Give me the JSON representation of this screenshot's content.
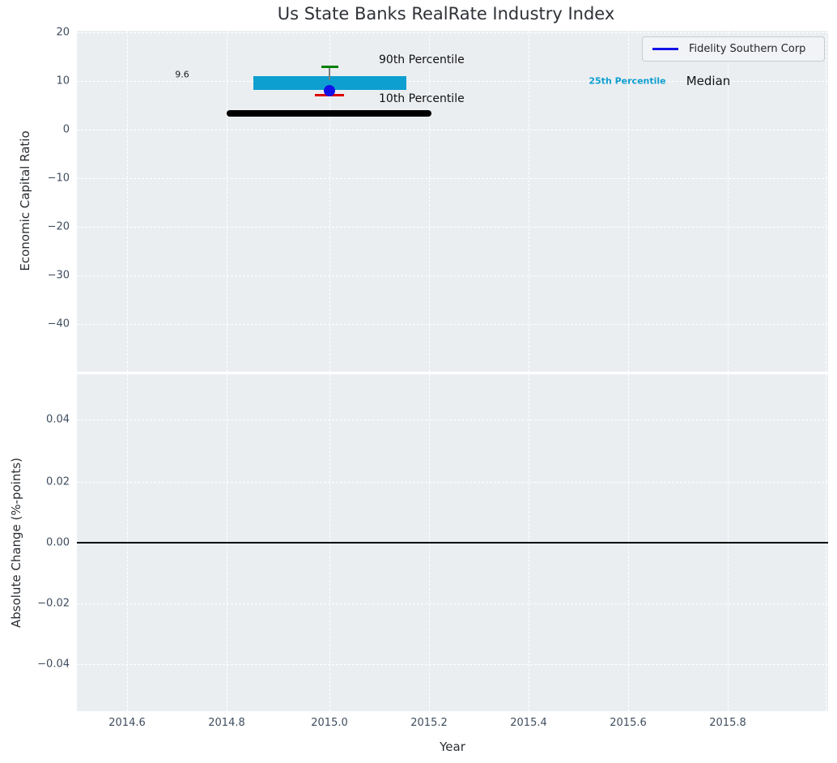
{
  "figure": {
    "title": "Us State Banks RealRate Industry Index"
  },
  "top_plot": {
    "ylabel": "Economic Capital Ratio",
    "yticks": [
      "20",
      "10",
      "0",
      "−10",
      "−20",
      "−30",
      "−40"
    ],
    "legend_label": "Fidelity Southern Corp",
    "annotations": {
      "median_value": "9.6",
      "p90_label": "90th Percentile",
      "p10_label": "10th Percentile",
      "p25_label": "25th Percentile",
      "median_label": "Median"
    }
  },
  "bottom_plot": {
    "ylabel": "Absolute Change (%-points)",
    "yticks": [
      "0.04",
      "0.02",
      "0.00",
      "−0.02",
      "−0.04"
    ]
  },
  "x_axis": {
    "label": "Year",
    "ticks": [
      "2014.6",
      "2014.8",
      "2015.0",
      "2015.2",
      "2015.4",
      "2015.6",
      "2015.8"
    ]
  },
  "colors": {
    "axes_background": "#ebeef1",
    "grid": "#ffffff",
    "tick_label": "#3f4d5e",
    "median_line": "#000000",
    "percentile_band": "#0d9fd0",
    "p90_cap": "#008000",
    "p10_cap": "#dd0400",
    "company_marker": "#1212e8",
    "whisker_stem": "#7f7f7f"
  },
  "chart_data": [
    {
      "type": "box-whisker",
      "title": "Us State Banks RealRate Industry Index",
      "xlabel": "Year",
      "ylabel": "Economic Capital Ratio",
      "xlim": [
        2014.5,
        2016.0
      ],
      "ylim": [
        -50.2,
        20.3
      ],
      "xticks": [
        2014.6,
        2014.8,
        2015.0,
        2015.2,
        2015.4,
        2015.6,
        2015.8
      ],
      "yticks": [
        20,
        10,
        0,
        -10,
        -20,
        -30,
        -40
      ],
      "grid": true,
      "grid_style": "white dashed on light gray background",
      "x": 2015.0,
      "median": 9.6,
      "median_annotation": "9.6",
      "median_line_x_extent": [
        2014.8,
        2015.21
      ],
      "percentile_band": {
        "low": 8.0,
        "high": 10.7,
        "x_extent": [
          2014.85,
          2015.16
        ],
        "label": "25th Percentile"
      },
      "p90": 12.7,
      "p10": 6.8,
      "series": [
        {
          "name": "Median",
          "x": 2015.0,
          "value": 9.6,
          "style": "thick black horizontal line"
        },
        {
          "name": "25th-75th Percentile band",
          "x": 2015.0,
          "low": 8.0,
          "high": 10.7,
          "style": "thick cyan horizontal bar"
        },
        {
          "name": "90th Percentile",
          "x": 2015.0,
          "value": 12.7,
          "style": "green whisker cap"
        },
        {
          "name": "10th Percentile",
          "x": 2015.0,
          "value": 6.8,
          "style": "red whisker cap"
        },
        {
          "name": "Fidelity Southern Corp",
          "x": 2015.0,
          "value": 7.7,
          "style": "blue dot marker"
        }
      ],
      "legend": {
        "position": "upper right",
        "entries": [
          "Fidelity Southern Corp"
        ]
      }
    },
    {
      "type": "line",
      "xlabel": "Year",
      "ylabel": "Absolute Change (%-points)",
      "xlim": [
        2014.5,
        2016.0
      ],
      "ylim": [
        -0.055,
        0.055
      ],
      "xticks": [
        2014.6,
        2014.8,
        2015.0,
        2015.2,
        2015.4,
        2015.6,
        2015.8
      ],
      "yticks": [
        0.04,
        0.02,
        0.0,
        -0.02,
        -0.04
      ],
      "grid": true,
      "series": [
        {
          "name": "zero-line",
          "y": 0.0,
          "style": "solid black horizontal line spanning full width"
        }
      ]
    }
  ]
}
